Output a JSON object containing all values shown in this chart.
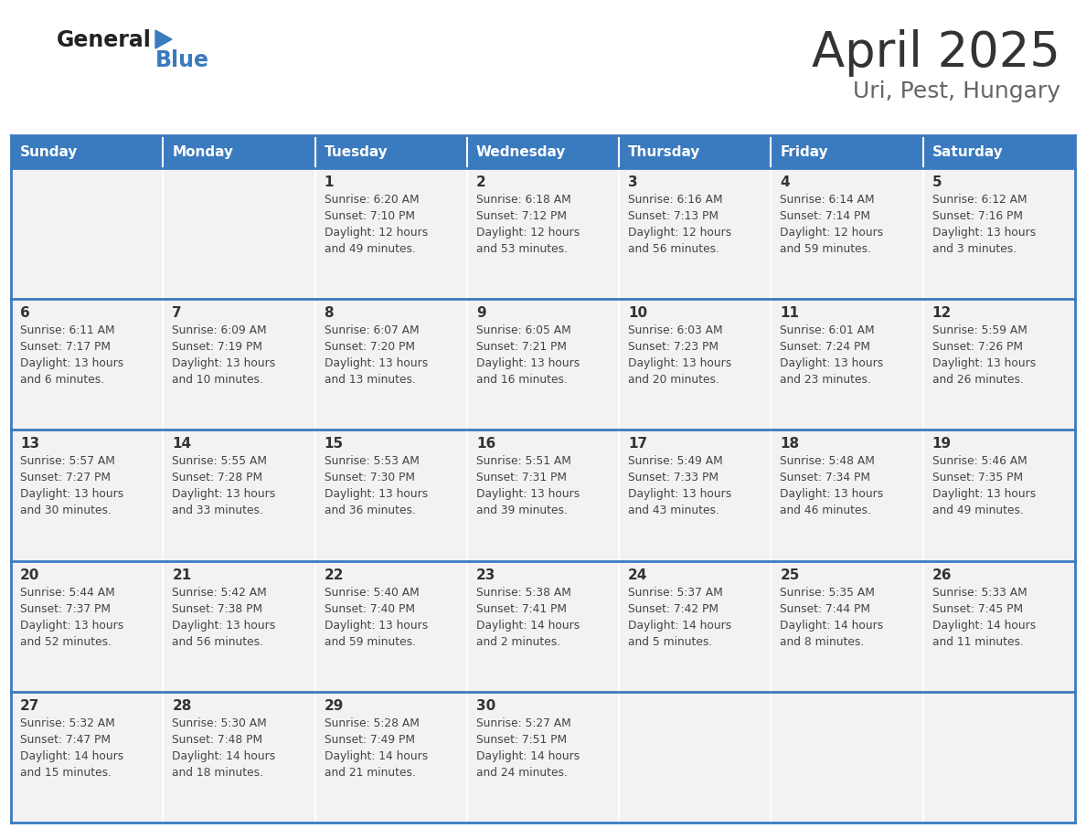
{
  "title": "April 2025",
  "subtitle": "Uri, Pest, Hungary",
  "days_of_week": [
    "Sunday",
    "Monday",
    "Tuesday",
    "Wednesday",
    "Thursday",
    "Friday",
    "Saturday"
  ],
  "header_bg": "#3a7abf",
  "header_text": "#ffffff",
  "row_bg": "#f2f2f2",
  "cell_border_color": "#3a7abf",
  "row_divider_color": "#3a7abf",
  "day_number_color": "#333333",
  "cell_text_color": "#444444",
  "title_color": "#333333",
  "subtitle_color": "#666666",
  "logo_black": "#222222",
  "logo_blue": "#3a7abf",
  "calendar_data": [
    [
      {
        "day": "",
        "sunrise": "",
        "sunset": "",
        "daylight": ""
      },
      {
        "day": "",
        "sunrise": "",
        "sunset": "",
        "daylight": ""
      },
      {
        "day": "1",
        "sunrise": "Sunrise: 6:20 AM",
        "sunset": "Sunset: 7:10 PM",
        "daylight": "Daylight: 12 hours\nand 49 minutes."
      },
      {
        "day": "2",
        "sunrise": "Sunrise: 6:18 AM",
        "sunset": "Sunset: 7:12 PM",
        "daylight": "Daylight: 12 hours\nand 53 minutes."
      },
      {
        "day": "3",
        "sunrise": "Sunrise: 6:16 AM",
        "sunset": "Sunset: 7:13 PM",
        "daylight": "Daylight: 12 hours\nand 56 minutes."
      },
      {
        "day": "4",
        "sunrise": "Sunrise: 6:14 AM",
        "sunset": "Sunset: 7:14 PM",
        "daylight": "Daylight: 12 hours\nand 59 minutes."
      },
      {
        "day": "5",
        "sunrise": "Sunrise: 6:12 AM",
        "sunset": "Sunset: 7:16 PM",
        "daylight": "Daylight: 13 hours\nand 3 minutes."
      }
    ],
    [
      {
        "day": "6",
        "sunrise": "Sunrise: 6:11 AM",
        "sunset": "Sunset: 7:17 PM",
        "daylight": "Daylight: 13 hours\nand 6 minutes."
      },
      {
        "day": "7",
        "sunrise": "Sunrise: 6:09 AM",
        "sunset": "Sunset: 7:19 PM",
        "daylight": "Daylight: 13 hours\nand 10 minutes."
      },
      {
        "day": "8",
        "sunrise": "Sunrise: 6:07 AM",
        "sunset": "Sunset: 7:20 PM",
        "daylight": "Daylight: 13 hours\nand 13 minutes."
      },
      {
        "day": "9",
        "sunrise": "Sunrise: 6:05 AM",
        "sunset": "Sunset: 7:21 PM",
        "daylight": "Daylight: 13 hours\nand 16 minutes."
      },
      {
        "day": "10",
        "sunrise": "Sunrise: 6:03 AM",
        "sunset": "Sunset: 7:23 PM",
        "daylight": "Daylight: 13 hours\nand 20 minutes."
      },
      {
        "day": "11",
        "sunrise": "Sunrise: 6:01 AM",
        "sunset": "Sunset: 7:24 PM",
        "daylight": "Daylight: 13 hours\nand 23 minutes."
      },
      {
        "day": "12",
        "sunrise": "Sunrise: 5:59 AM",
        "sunset": "Sunset: 7:26 PM",
        "daylight": "Daylight: 13 hours\nand 26 minutes."
      }
    ],
    [
      {
        "day": "13",
        "sunrise": "Sunrise: 5:57 AM",
        "sunset": "Sunset: 7:27 PM",
        "daylight": "Daylight: 13 hours\nand 30 minutes."
      },
      {
        "day": "14",
        "sunrise": "Sunrise: 5:55 AM",
        "sunset": "Sunset: 7:28 PM",
        "daylight": "Daylight: 13 hours\nand 33 minutes."
      },
      {
        "day": "15",
        "sunrise": "Sunrise: 5:53 AM",
        "sunset": "Sunset: 7:30 PM",
        "daylight": "Daylight: 13 hours\nand 36 minutes."
      },
      {
        "day": "16",
        "sunrise": "Sunrise: 5:51 AM",
        "sunset": "Sunset: 7:31 PM",
        "daylight": "Daylight: 13 hours\nand 39 minutes."
      },
      {
        "day": "17",
        "sunrise": "Sunrise: 5:49 AM",
        "sunset": "Sunset: 7:33 PM",
        "daylight": "Daylight: 13 hours\nand 43 minutes."
      },
      {
        "day": "18",
        "sunrise": "Sunrise: 5:48 AM",
        "sunset": "Sunset: 7:34 PM",
        "daylight": "Daylight: 13 hours\nand 46 minutes."
      },
      {
        "day": "19",
        "sunrise": "Sunrise: 5:46 AM",
        "sunset": "Sunset: 7:35 PM",
        "daylight": "Daylight: 13 hours\nand 49 minutes."
      }
    ],
    [
      {
        "day": "20",
        "sunrise": "Sunrise: 5:44 AM",
        "sunset": "Sunset: 7:37 PM",
        "daylight": "Daylight: 13 hours\nand 52 minutes."
      },
      {
        "day": "21",
        "sunrise": "Sunrise: 5:42 AM",
        "sunset": "Sunset: 7:38 PM",
        "daylight": "Daylight: 13 hours\nand 56 minutes."
      },
      {
        "day": "22",
        "sunrise": "Sunrise: 5:40 AM",
        "sunset": "Sunset: 7:40 PM",
        "daylight": "Daylight: 13 hours\nand 59 minutes."
      },
      {
        "day": "23",
        "sunrise": "Sunrise: 5:38 AM",
        "sunset": "Sunset: 7:41 PM",
        "daylight": "Daylight: 14 hours\nand 2 minutes."
      },
      {
        "day": "24",
        "sunrise": "Sunrise: 5:37 AM",
        "sunset": "Sunset: 7:42 PM",
        "daylight": "Daylight: 14 hours\nand 5 minutes."
      },
      {
        "day": "25",
        "sunrise": "Sunrise: 5:35 AM",
        "sunset": "Sunset: 7:44 PM",
        "daylight": "Daylight: 14 hours\nand 8 minutes."
      },
      {
        "day": "26",
        "sunrise": "Sunrise: 5:33 AM",
        "sunset": "Sunset: 7:45 PM",
        "daylight": "Daylight: 14 hours\nand 11 minutes."
      }
    ],
    [
      {
        "day": "27",
        "sunrise": "Sunrise: 5:32 AM",
        "sunset": "Sunset: 7:47 PM",
        "daylight": "Daylight: 14 hours\nand 15 minutes."
      },
      {
        "day": "28",
        "sunrise": "Sunrise: 5:30 AM",
        "sunset": "Sunset: 7:48 PM",
        "daylight": "Daylight: 14 hours\nand 18 minutes."
      },
      {
        "day": "29",
        "sunrise": "Sunrise: 5:28 AM",
        "sunset": "Sunset: 7:49 PM",
        "daylight": "Daylight: 14 hours\nand 21 minutes."
      },
      {
        "day": "30",
        "sunrise": "Sunrise: 5:27 AM",
        "sunset": "Sunset: 7:51 PM",
        "daylight": "Daylight: 14 hours\nand 24 minutes."
      },
      {
        "day": "",
        "sunrise": "",
        "sunset": "",
        "daylight": ""
      },
      {
        "day": "",
        "sunrise": "",
        "sunset": "",
        "daylight": ""
      },
      {
        "day": "",
        "sunrise": "",
        "sunset": "",
        "daylight": ""
      }
    ]
  ]
}
